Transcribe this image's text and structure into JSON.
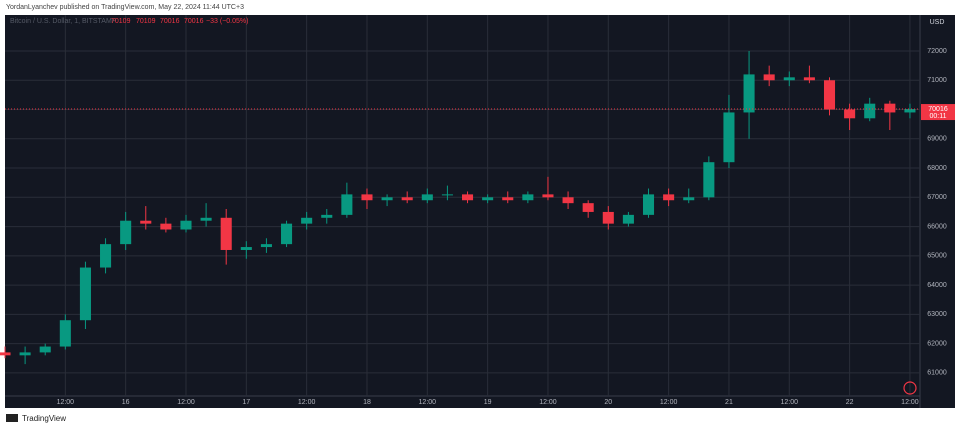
{
  "header": "YordanLyanchev published on TradingView.com, May 22, 2024 11:44 UTC+3",
  "footer": "TradingView",
  "chart_data": {
    "type": "candlestick",
    "symbol": "Bitcoin / U.S. Dollar, 1, BITSTAMP",
    "ohlc_readout": [
      "70109",
      "70109",
      "70016",
      "70016",
      "−33 (−0.05%)"
    ],
    "currency": "USD",
    "last_price": 70016,
    "countdown": "00:11",
    "up_color": "#089981",
    "down_color": "#f23645",
    "grid": true,
    "xlim": [
      0,
      182
    ],
    "ylim": [
      59800,
      73230
    ],
    "xticks": [
      {
        "value": 12,
        "label": "12:00"
      },
      {
        "value": 24,
        "label": "16"
      },
      {
        "value": 36,
        "label": "12:00"
      },
      {
        "value": 48,
        "label": "17"
      },
      {
        "value": 60,
        "label": "12:00"
      },
      {
        "value": 72,
        "label": "18"
      },
      {
        "value": 84,
        "label": "12:00"
      },
      {
        "value": 96,
        "label": "19"
      },
      {
        "value": 108,
        "label": "12:00"
      },
      {
        "value": 120,
        "label": "20"
      },
      {
        "value": 132,
        "label": "12:00"
      },
      {
        "value": 144,
        "label": "21"
      },
      {
        "value": 156,
        "label": "12:00"
      },
      {
        "value": 168,
        "label": "22"
      },
      {
        "value": 180,
        "label": "12:00"
      }
    ],
    "yticks": [
      61000,
      62000,
      63000,
      64000,
      65000,
      66000,
      67000,
      68000,
      69000,
      70000,
      71000,
      72000
    ],
    "x": [
      0,
      4,
      8,
      12,
      16,
      20,
      24,
      28,
      32,
      36,
      40,
      44,
      48,
      52,
      56,
      60,
      64,
      68,
      72,
      76,
      80,
      84,
      88,
      92,
      96,
      100,
      104,
      108,
      112,
      116,
      120,
      124,
      128,
      132,
      136,
      140,
      144,
      148,
      152,
      156,
      160,
      164,
      168,
      172,
      176,
      180
    ],
    "open": [
      61700,
      61600,
      61700,
      61900,
      62800,
      64600,
      65400,
      66200,
      66100,
      65900,
      66200,
      66300,
      65200,
      65300,
      65400,
      66100,
      66300,
      66400,
      67100,
      66900,
      67000,
      66900,
      67100,
      67100,
      66900,
      67000,
      66900,
      67100,
      67000,
      66800,
      66500,
      66100,
      66400,
      67100,
      66900,
      67000,
      68200,
      69900,
      71200,
      71000,
      71100,
      71000,
      70000,
      69700,
      70200,
      69900
    ],
    "high": [
      61900,
      61900,
      62000,
      63000,
      64800,
      65600,
      66500,
      66700,
      66300,
      66400,
      66800,
      66600,
      65500,
      65600,
      66200,
      66500,
      66600,
      67500,
      67300,
      67100,
      67200,
      67300,
      67400,
      67200,
      67100,
      67200,
      67200,
      67700,
      67200,
      66900,
      66700,
      66500,
      67300,
      67300,
      67300,
      68400,
      70500,
      72000,
      71500,
      71300,
      71500,
      71100,
      70200,
      70400,
      70300,
      70200
    ],
    "low": [
      61500,
      61300,
      61600,
      61800,
      62500,
      64400,
      65200,
      65900,
      65800,
      65800,
      66000,
      64700,
      64900,
      65100,
      65300,
      65900,
      66100,
      66300,
      66600,
      66700,
      66800,
      66800,
      66900,
      66800,
      66800,
      66800,
      66800,
      66900,
      66600,
      66300,
      65900,
      66000,
      66300,
      66700,
      66800,
      66900,
      68000,
      69000,
      70800,
      70800,
      70900,
      69800,
      69300,
      69600,
      69300,
      69700
    ],
    "close": [
      61600,
      61700,
      61900,
      62800,
      64600,
      65400,
      66200,
      66100,
      65900,
      66200,
      66300,
      65200,
      65300,
      65400,
      66100,
      66300,
      66400,
      67100,
      66900,
      67000,
      66900,
      67100,
      67100,
      66900,
      67000,
      66900,
      67100,
      67000,
      66800,
      66500,
      66100,
      66400,
      67100,
      66900,
      67000,
      68200,
      69900,
      71200,
      71000,
      71100,
      71000,
      70000,
      69700,
      70200,
      69900,
      70016
    ]
  }
}
